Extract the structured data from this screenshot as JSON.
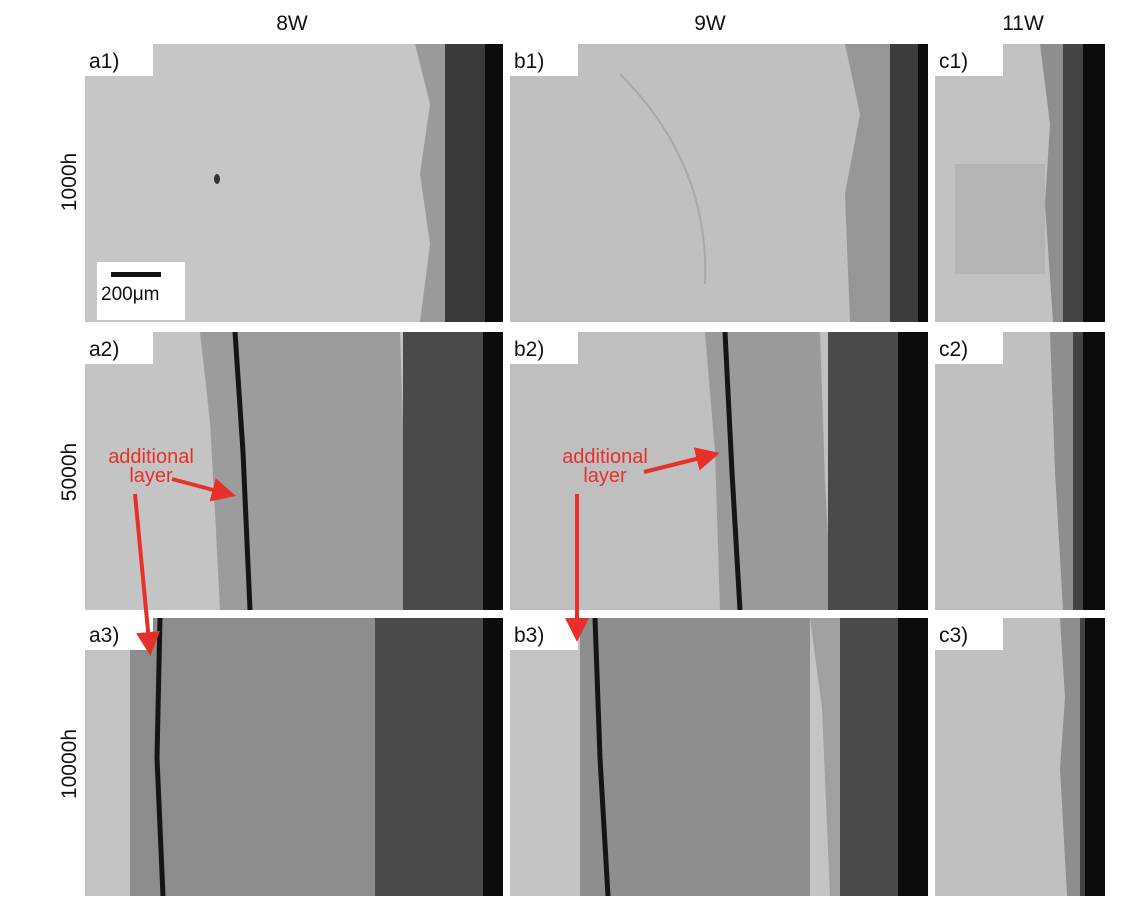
{
  "columns": [
    "8W",
    "9W",
    "11W"
  ],
  "rows": [
    "1000h",
    "5000h",
    "10000h"
  ],
  "panels": {
    "a1": "a1)",
    "b1": "b1)",
    "c1": "c1)",
    "a2": "a2)",
    "b2": "b2)",
    "c2": "c2)",
    "a3": "a3)",
    "b3": "b3)",
    "c3": "c3)"
  },
  "scale_bar": {
    "label": "200μm"
  },
  "annotations": [
    {
      "line1": "additional",
      "line2": "layer"
    },
    {
      "line1": "additional",
      "line2": "layer"
    }
  ],
  "colors": {
    "annotation": "#e8302a",
    "background": "#ffffff"
  }
}
